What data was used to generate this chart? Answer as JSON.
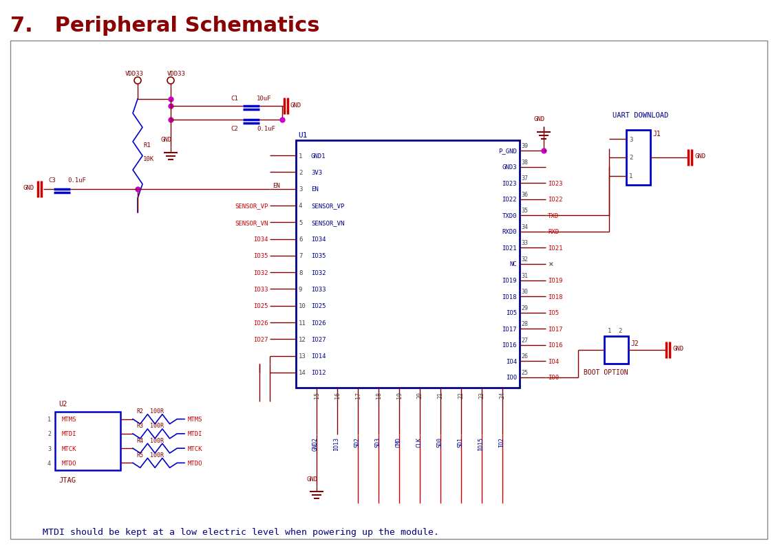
{
  "title": "7.   Peripheral Schematics",
  "title_color": "#8B0000",
  "bg_color": "#FFFFFF",
  "note_text": "    MTDI should be kept at a low electric level when powering up the module.",
  "note_color": "#000080",
  "dark_red": "#800000",
  "blue": "#0000CD",
  "red": "#CC0000",
  "magenta": "#CC00CC",
  "dark_blue": "#00008B",
  "gray": "#555555",
  "left_pins": [
    [
      1,
      "GND1"
    ],
    [
      2,
      "3V3"
    ],
    [
      3,
      "EN"
    ],
    [
      4,
      "SENSOR_VP"
    ],
    [
      5,
      "SENSOR_VN"
    ],
    [
      6,
      "IO34"
    ],
    [
      7,
      "IO35"
    ],
    [
      8,
      "IO32"
    ],
    [
      9,
      "IO33"
    ],
    [
      10,
      "IO25"
    ],
    [
      11,
      "IO26"
    ],
    [
      12,
      "IO27"
    ],
    [
      13,
      "IO14"
    ],
    [
      14,
      "IO12"
    ]
  ],
  "right_pins": [
    [
      39,
      "P_GND"
    ],
    [
      38,
      "GND3"
    ],
    [
      37,
      "IO23"
    ],
    [
      36,
      "IO22"
    ],
    [
      35,
      "TXD0"
    ],
    [
      34,
      "RXD0"
    ],
    [
      33,
      "IO21"
    ],
    [
      32,
      "NC"
    ],
    [
      31,
      "IO19"
    ],
    [
      30,
      "IO18"
    ],
    [
      29,
      "IO5"
    ],
    [
      28,
      "IO17"
    ],
    [
      27,
      "IO16"
    ],
    [
      26,
      "IO4"
    ],
    [
      25,
      "IO0"
    ]
  ],
  "bottom_pins": [
    [
      15,
      "GND2"
    ],
    [
      16,
      "IO13"
    ],
    [
      17,
      "SD2"
    ],
    [
      18,
      "SD3"
    ],
    [
      19,
      "CMD"
    ],
    [
      20,
      "CLK"
    ],
    [
      21,
      "SD0"
    ],
    [
      22,
      "SD1"
    ],
    [
      23,
      "IO15"
    ],
    [
      24,
      "IO2"
    ]
  ],
  "left_red_nets": [
    "SENSOR_VP",
    "SENSOR_VN",
    "IO34",
    "IO35",
    "IO32",
    "IO33",
    "IO25",
    "IO26",
    "IO27"
  ],
  "right_red_nets": [
    "IO23",
    "IO22",
    "TXD0",
    "RXD0",
    "IO21",
    "IO19",
    "IO18",
    "IO5",
    "IO17",
    "IO16",
    "IO4",
    "IO0"
  ],
  "right_red_short": [
    "IO23",
    "IO22",
    "TXD",
    "RXD",
    "IO21",
    "IO19",
    "IO18",
    "IO5",
    "IO17",
    "IO16",
    "IO4",
    "IO0"
  ],
  "jtag_pins": [
    "MTMS",
    "MTDI",
    "MTCK",
    "MTDO"
  ],
  "res_names": [
    "R2",
    "R3",
    "R4",
    "R5"
  ],
  "res_net_labels": [
    "MTMS",
    "MTDI",
    "MTCK",
    "MTDO"
  ]
}
